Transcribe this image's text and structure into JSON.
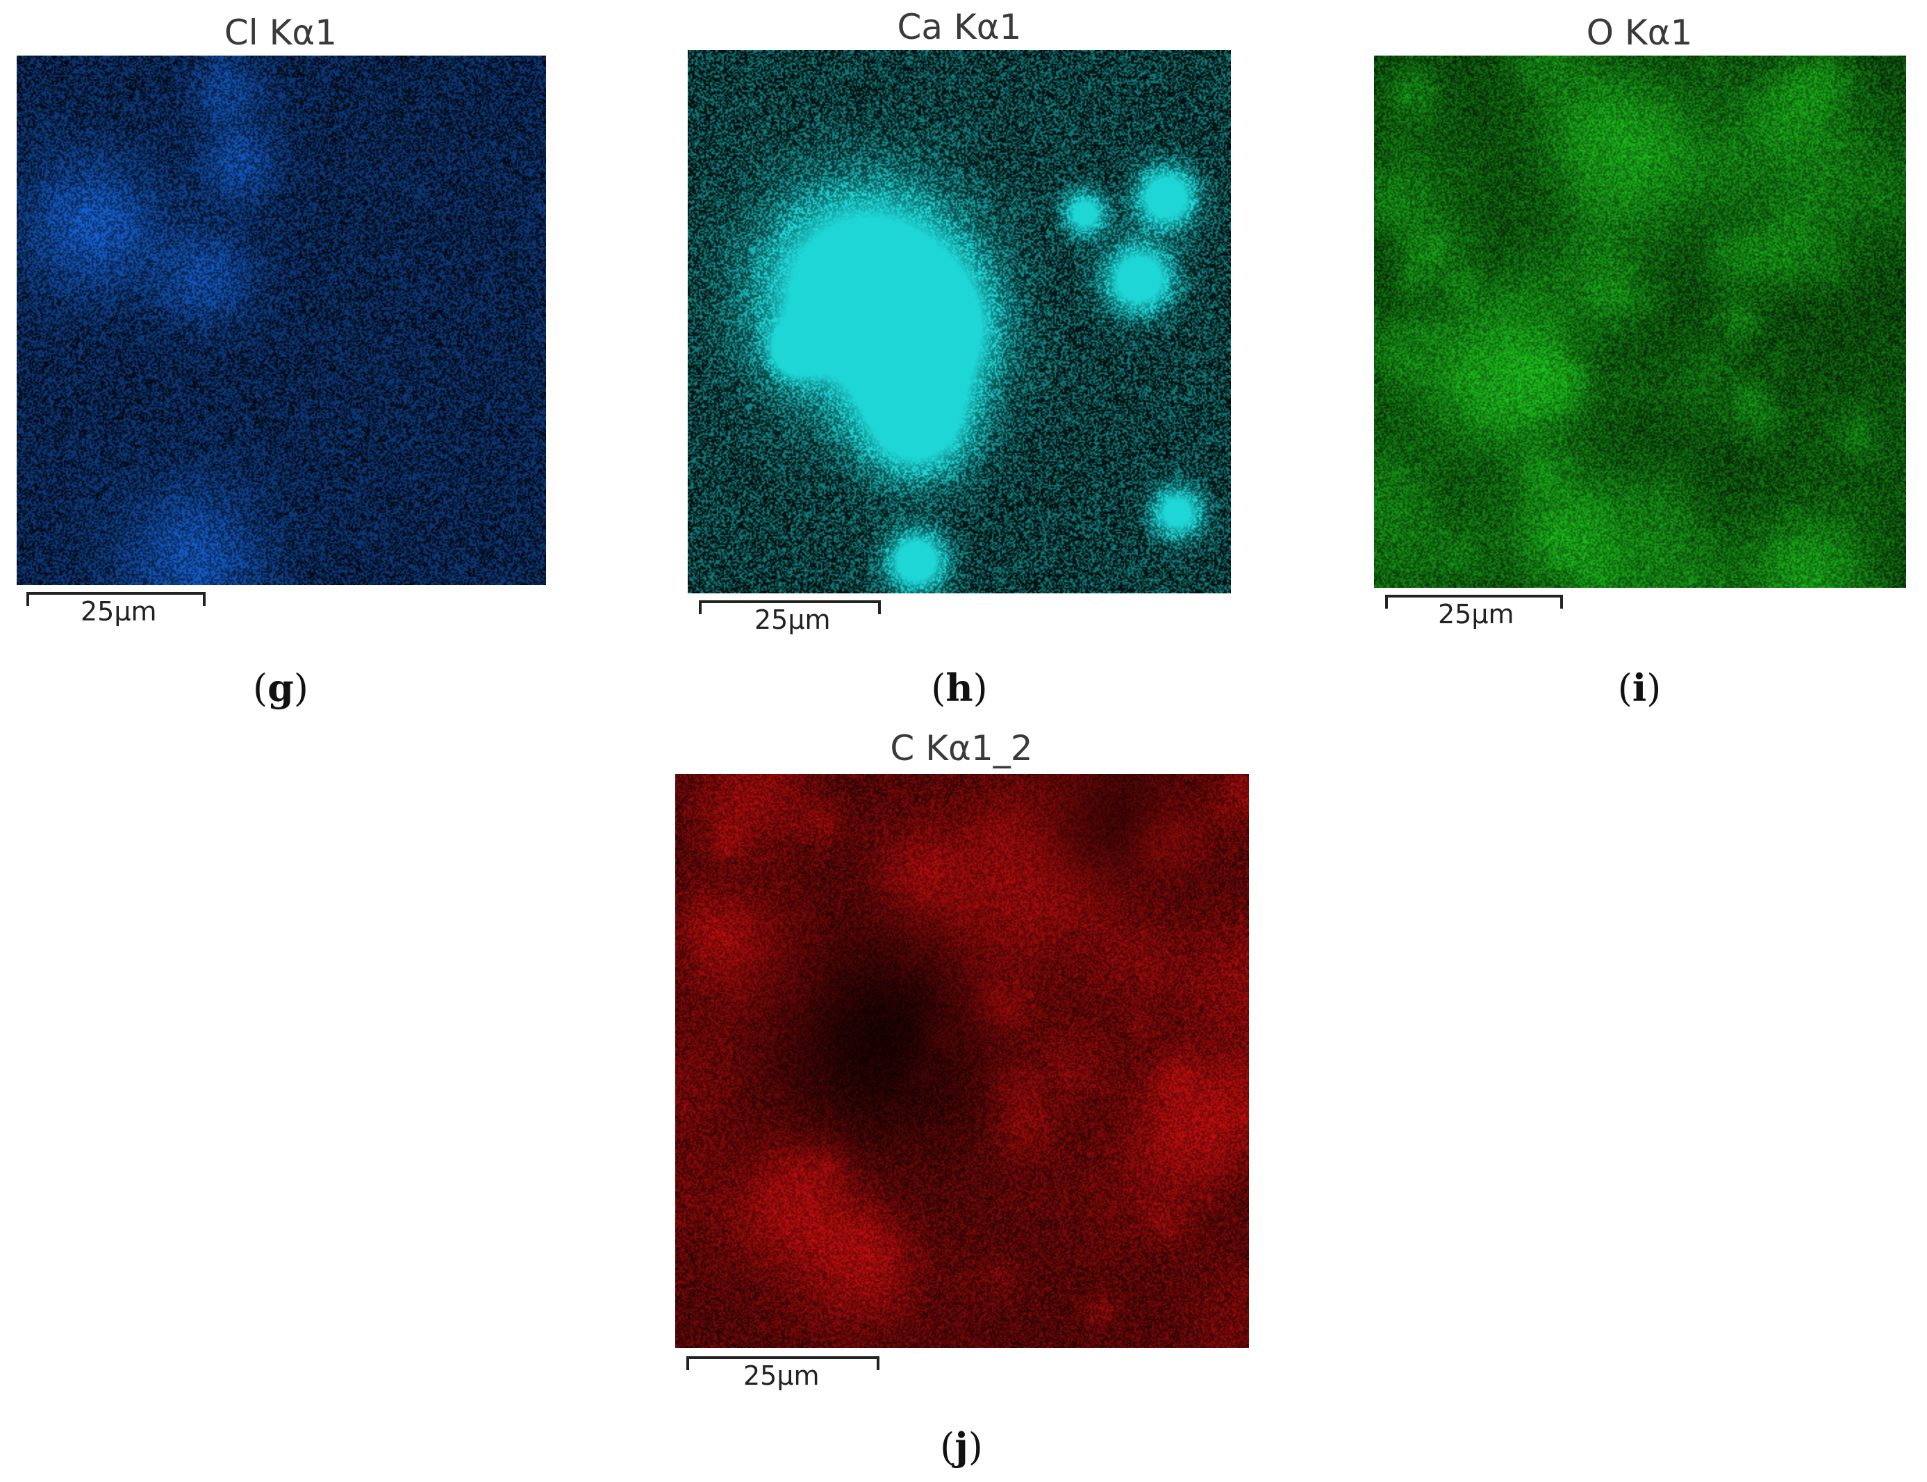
{
  "panels": [
    {
      "id": "g",
      "title": "Cl Kα1",
      "scale": "25µm",
      "label": "g",
      "color": "#1560d0"
    },
    {
      "id": "h",
      "title": "Ca Kα1",
      "scale": "25µm",
      "label": "h",
      "color": "#1fd6d6"
    },
    {
      "id": "i",
      "title": "O Kα1",
      "scale": "25µm",
      "label": "i",
      "color": "#1ec81e"
    },
    {
      "id": "j",
      "title": "C Kα1_2",
      "scale": "25µm",
      "label": "j",
      "color": "#e01010"
    }
  ]
}
